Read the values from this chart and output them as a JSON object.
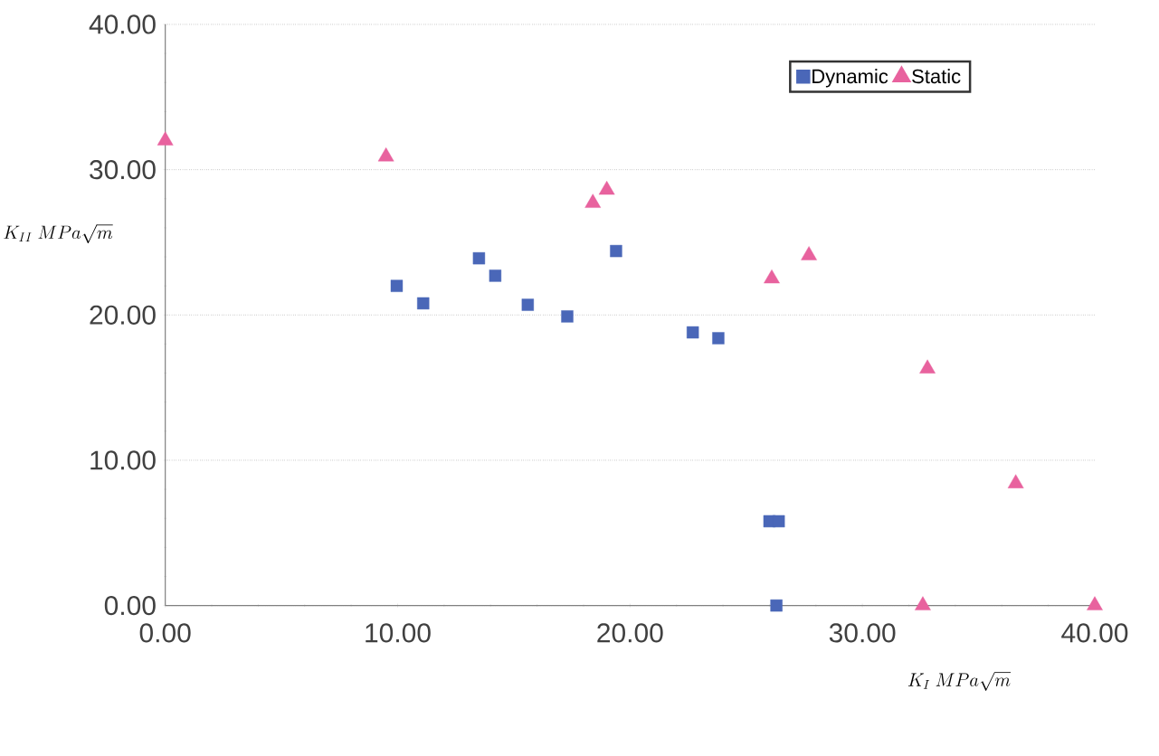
{
  "chart_data": {
    "type": "scatter",
    "xlabel": "K_{I}\\ MPa\\sqrt{m}",
    "ylabel": "K_{II}\\ MPa\\sqrt{m}",
    "xlim": [
      0,
      40
    ],
    "ylim": [
      0,
      40
    ],
    "xticks": [
      {
        "value": 0,
        "label": "0.00"
      },
      {
        "value": 10,
        "label": "10.00"
      },
      {
        "value": 20,
        "label": "20.00"
      },
      {
        "value": 30,
        "label": "30.00"
      },
      {
        "value": 40,
        "label": "40.00"
      }
    ],
    "yticks": [
      {
        "value": 0,
        "label": "0.00"
      },
      {
        "value": 10,
        "label": "10.00"
      },
      {
        "value": 20,
        "label": "20.00"
      },
      {
        "value": 30,
        "label": "30.00"
      },
      {
        "value": 40,
        "label": "40.00"
      }
    ],
    "grid": "y",
    "legend": "top right",
    "series": [
      {
        "name": "Dynamic",
        "color": "#4a67b8",
        "marker": "square",
        "x": [
          9.96,
          11.1,
          13.5,
          14.2,
          15.6,
          17.3,
          19.4,
          22.7,
          23.8,
          26.0,
          26.4,
          26.3
        ],
        "values": [
          22.0,
          20.8,
          23.9,
          22.7,
          20.7,
          19.9,
          24.4,
          18.8,
          18.4,
          5.8,
          5.8,
          0
        ]
      },
      {
        "name": "Static",
        "color": "#e8629e",
        "marker": "triangle",
        "x": [
          0,
          9.5,
          18.4,
          19.0,
          26.1,
          27.7,
          32.8,
          32.6,
          36.6,
          40
        ],
        "values": [
          32.0,
          30.9,
          27.7,
          28.6,
          22.5,
          24.1,
          16.3,
          0,
          8.4,
          0
        ]
      }
    ]
  }
}
